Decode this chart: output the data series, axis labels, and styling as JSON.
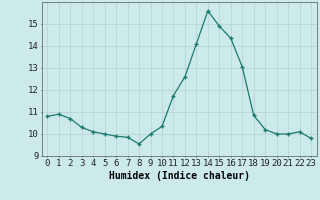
{
  "x": [
    0,
    1,
    2,
    3,
    4,
    5,
    6,
    7,
    8,
    9,
    10,
    11,
    12,
    13,
    14,
    15,
    16,
    17,
    18,
    19,
    20,
    21,
    22,
    23
  ],
  "y": [
    10.8,
    10.9,
    10.7,
    10.3,
    10.1,
    10.0,
    9.9,
    9.85,
    9.55,
    10.0,
    10.35,
    11.75,
    12.6,
    14.1,
    15.6,
    14.9,
    14.35,
    13.05,
    10.85,
    10.2,
    10.0,
    10.0,
    10.1,
    9.8
  ],
  "line_color": "#1a7a6e",
  "marker": "+",
  "marker_size": 3.5,
  "bg_color": "#cdeaea",
  "grid_color": "#b8d4d4",
  "xlabel": "Humidex (Indice chaleur)",
  "ylim": [
    9,
    16
  ],
  "yticks": [
    9,
    10,
    11,
    12,
    13,
    14,
    15
  ],
  "xlabel_fontsize": 7,
  "tick_fontsize": 6.5
}
